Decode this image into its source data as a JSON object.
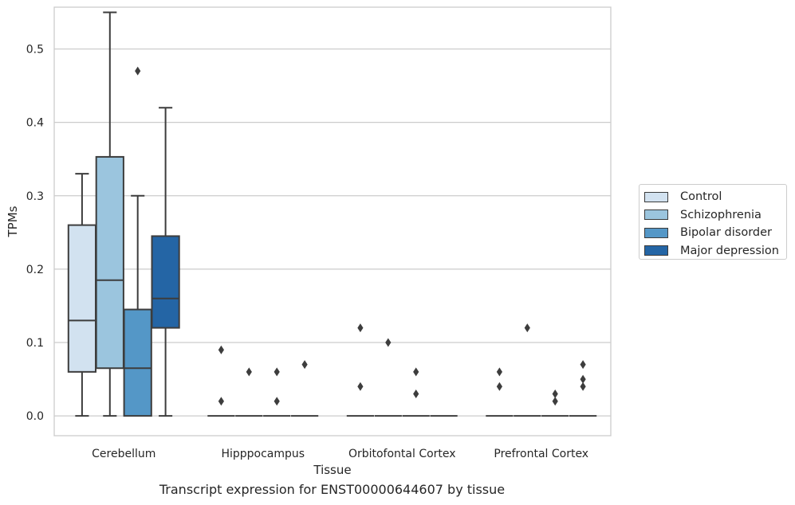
{
  "caption": "Transcript expression for ENST00000644607 by tissue",
  "chart_data": {
    "type": "box",
    "xlabel": "Tissue",
    "ylabel": "TPMs",
    "ylim": [
      -0.027,
      0.557
    ],
    "yticks": [
      0.0,
      0.1,
      0.2,
      0.3,
      0.4,
      0.5
    ],
    "ytick_labels": [
      "0.0",
      "0.1",
      "0.2",
      "0.3",
      "0.4",
      "0.5"
    ],
    "categories": [
      "Cerebellum",
      "Hipppocampus",
      "Orbitofontal Cortex",
      "Prefrontal Cortex"
    ],
    "grid": "horizontal",
    "legend_position": "center-right",
    "series": [
      {
        "name": "Control",
        "color": "#d2e2f0",
        "boxes": [
          {
            "min": 0.0,
            "q1": 0.06,
            "median": 0.13,
            "q3": 0.26,
            "max": 0.33,
            "outliers": []
          },
          {
            "min": 0.0,
            "q1": 0.0,
            "median": 0.0,
            "q3": 0.0,
            "max": 0.0,
            "outliers": [
              0.09,
              0.02
            ]
          },
          {
            "min": 0.0,
            "q1": 0.0,
            "median": 0.0,
            "q3": 0.0,
            "max": 0.0,
            "outliers": [
              0.12,
              0.04
            ]
          },
          {
            "min": 0.0,
            "q1": 0.0,
            "median": 0.0,
            "q3": 0.0,
            "max": 0.0,
            "outliers": [
              0.06,
              0.04
            ]
          }
        ]
      },
      {
        "name": "Schizophrenia",
        "color": "#9bc5de",
        "boxes": [
          {
            "min": 0.0,
            "q1": 0.065,
            "median": 0.185,
            "q3": 0.353,
            "max": 0.55,
            "outliers": []
          },
          {
            "min": 0.0,
            "q1": 0.0,
            "median": 0.0,
            "q3": 0.0,
            "max": 0.0,
            "outliers": [
              0.06
            ]
          },
          {
            "min": 0.0,
            "q1": 0.0,
            "median": 0.0,
            "q3": 0.0,
            "max": 0.0,
            "outliers": [
              0.1
            ]
          },
          {
            "min": 0.0,
            "q1": 0.0,
            "median": 0.0,
            "q3": 0.0,
            "max": 0.0,
            "outliers": [
              0.12
            ]
          }
        ]
      },
      {
        "name": "Bipolar disorder",
        "color": "#5497c7",
        "boxes": [
          {
            "min": 0.0,
            "q1": 0.0,
            "median": 0.065,
            "q3": 0.145,
            "max": 0.3,
            "outliers": [
              0.47
            ]
          },
          {
            "min": 0.0,
            "q1": 0.0,
            "median": 0.0,
            "q3": 0.0,
            "max": 0.0,
            "outliers": [
              0.06,
              0.02
            ]
          },
          {
            "min": 0.0,
            "q1": 0.0,
            "median": 0.0,
            "q3": 0.0,
            "max": 0.0,
            "outliers": [
              0.06,
              0.03
            ]
          },
          {
            "min": 0.0,
            "q1": 0.0,
            "median": 0.0,
            "q3": 0.0,
            "max": 0.0,
            "outliers": [
              0.03,
              0.02
            ]
          }
        ]
      },
      {
        "name": "Major depression",
        "color": "#2465a5",
        "boxes": [
          {
            "min": 0.0,
            "q1": 0.12,
            "median": 0.16,
            "q3": 0.245,
            "max": 0.42,
            "outliers": []
          },
          {
            "min": 0.0,
            "q1": 0.0,
            "median": 0.0,
            "q3": 0.0,
            "max": 0.0,
            "outliers": [
              0.07
            ]
          },
          {
            "min": 0.0,
            "q1": 0.0,
            "median": 0.0,
            "q3": 0.0,
            "max": 0.0,
            "outliers": []
          },
          {
            "min": 0.0,
            "q1": 0.0,
            "median": 0.0,
            "q3": 0.0,
            "max": 0.0,
            "outliers": [
              0.07,
              0.05,
              0.04
            ]
          }
        ]
      }
    ]
  }
}
